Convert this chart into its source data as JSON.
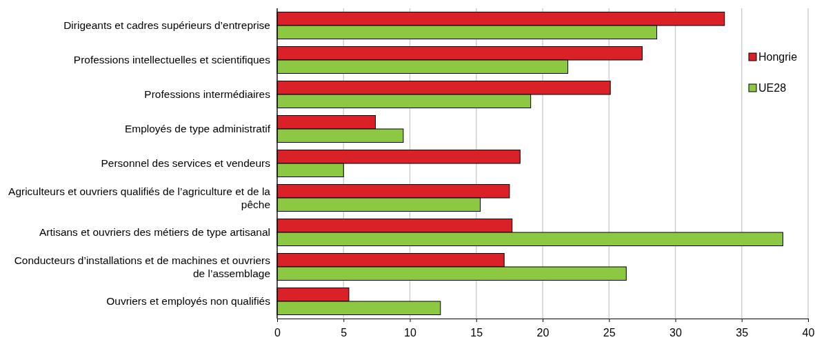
{
  "chart_data": {
    "type": "bar",
    "orientation": "horizontal",
    "categories": [
      "Dirigeants et cadres supérieurs d’entreprise",
      "Professions intellectuelles et scientifiques",
      "Professions intermédiaires",
      "Employés de type administratif",
      "Personnel des services et vendeurs",
      "Agriculteurs et ouvriers qualifiés de l’agriculture et de la pêche",
      "Artisans et ouvriers des métiers de type artisanal",
      "Conducteurs d’installations et de machines et ouvriers de l’assemblage",
      "Ouvriers et employés non qualifiés"
    ],
    "series": [
      {
        "name": "Hongrie",
        "color": "#da2128",
        "values": [
          33.7,
          27.5,
          25.1,
          7.4,
          18.3,
          17.5,
          17.7,
          17.1,
          5.4
        ]
      },
      {
        "name": "UE28",
        "color": "#8cc841",
        "values": [
          28.6,
          21.9,
          19.1,
          9.5,
          5.0,
          15.3,
          38.1,
          26.3,
          12.3
        ]
      }
    ],
    "xlim": [
      0,
      40
    ],
    "xticks": [
      0,
      5,
      10,
      15,
      20,
      25,
      30,
      35,
      40
    ],
    "grid": "x",
    "legend": "right"
  }
}
